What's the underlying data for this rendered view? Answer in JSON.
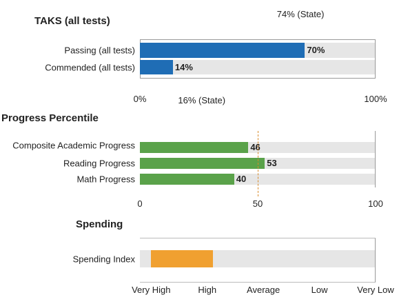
{
  "chart_data": [
    {
      "type": "bar",
      "title": "TAKS (all tests)",
      "categories": [
        "Passing (all tests)",
        "Commended (all tests)"
      ],
      "values": [
        70,
        14
      ],
      "value_labels": [
        "70%",
        "14%"
      ],
      "color": "#1f6db5",
      "xlim": [
        0,
        100
      ],
      "xticks": [
        {
          "value": 0,
          "label": "0%"
        },
        {
          "value": 100,
          "label": "100%"
        }
      ],
      "annotations": [
        {
          "value": 74,
          "label": "74% (State)"
        },
        {
          "value": 16,
          "label": "16% (State)"
        }
      ]
    },
    {
      "type": "bar",
      "title": "Progress Percentile",
      "categories": [
        "Composite Academic Progress",
        "Reading Progress",
        "Math Progress"
      ],
      "values": [
        46,
        53,
        40
      ],
      "color": "#5aa24a",
      "xlim": [
        0,
        100
      ],
      "xticks": [
        0,
        50,
        100
      ],
      "reference_line": {
        "value": 50,
        "color": "#d98c2b"
      }
    },
    {
      "type": "bar",
      "title": "Spending",
      "categories": [
        "Spending Index"
      ],
      "values": [
        1.1
      ],
      "color": "#f0a030",
      "xlim": [
        -0.2,
        4
      ],
      "xticks": [
        {
          "value": 0,
          "label": "Very High"
        },
        {
          "value": 1,
          "label": "High"
        },
        {
          "value": 2,
          "label": "Average"
        },
        {
          "value": 3,
          "label": "Low"
        },
        {
          "value": 4,
          "label": "Very Low"
        }
      ]
    }
  ]
}
